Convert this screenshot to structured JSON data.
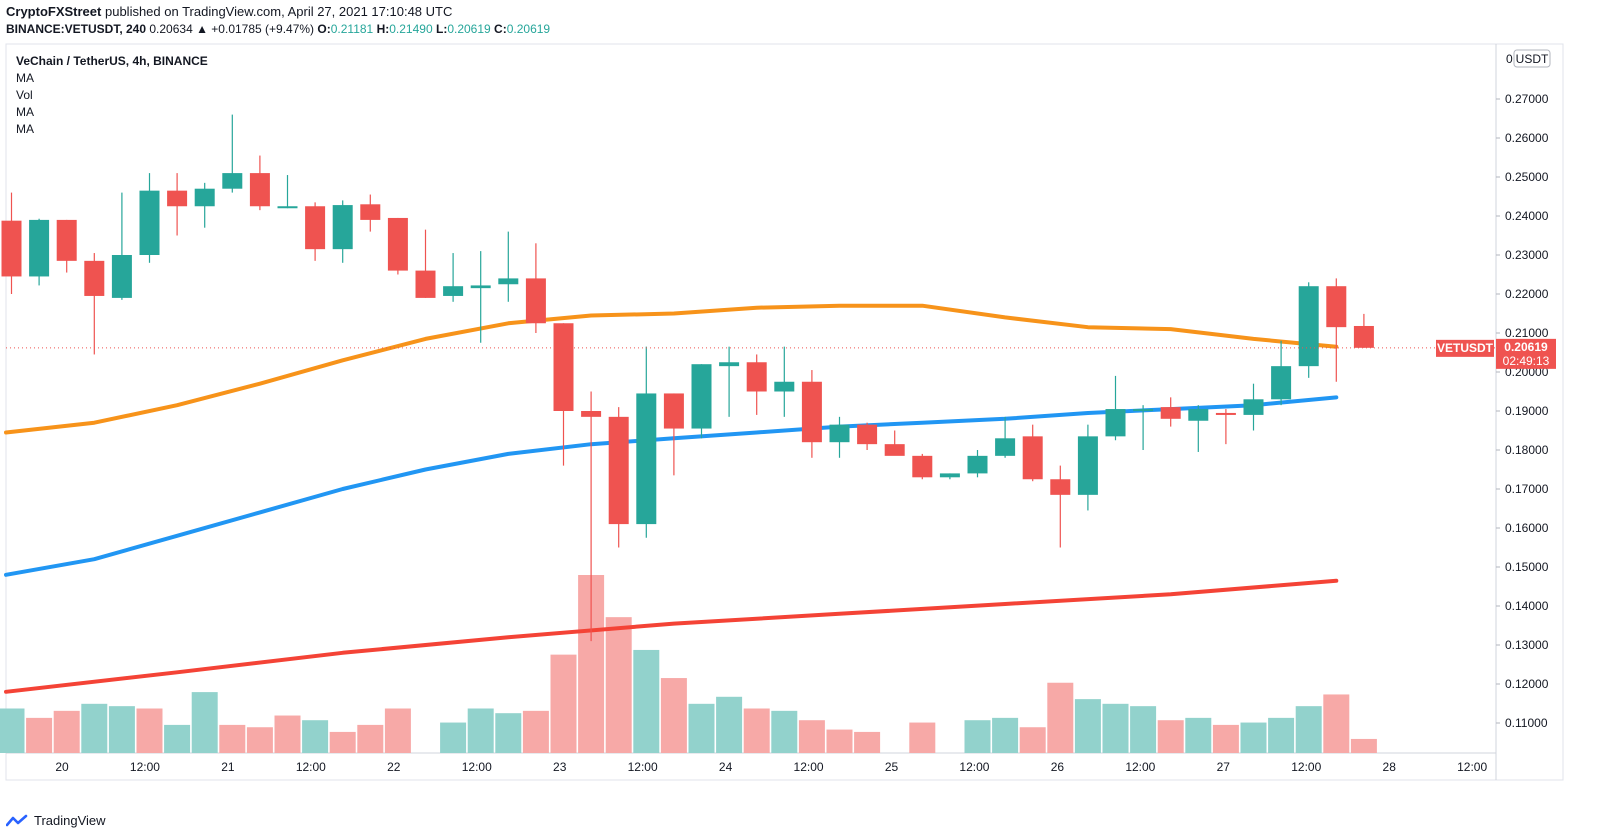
{
  "header": {
    "publisher": "CryptoFXStreet",
    "published_text": "published on TradingView.com, April 27, 2021 17:10:48 UTC",
    "symbol_line": "BINANCE:VETUSDT, 240",
    "change": "0.20634 ▲ +0.01785 (+9.47%)",
    "o_label": "O:",
    "o_value": "0.21181",
    "h_label": "H:",
    "h_value": "0.21490",
    "l_label": "L:",
    "l_value": "0.20619",
    "c_label": "C:",
    "c_value": "0.20619"
  },
  "legend": {
    "symbol": "VeChain / TetherUS, 4h, BINANCE",
    "indicators": [
      "MA",
      "Vol",
      "MA",
      "MA"
    ]
  },
  "footer": {
    "brand": "TradingView"
  },
  "colors": {
    "up": "#26a69a",
    "down": "#ef5350",
    "ma_orange": "#f7931a",
    "ma_blue": "#2196f3",
    "ma_red": "#f44336",
    "price_line": "#ef5350"
  },
  "chart_data": {
    "type": "candlestick",
    "ylim": [
      0.1,
      0.28
    ],
    "y_ticks": [
      "0.27000",
      "0.26000",
      "0.25000",
      "0.24000",
      "0.23000",
      "0.22000",
      "0.21000",
      "0.20000",
      "0.19000",
      "0.18000",
      "0.17000",
      "0.16000",
      "0.15000",
      "0.14000",
      "0.13000",
      "0.12000",
      "0.11000"
    ],
    "y_top_label": "0",
    "currency": "USDT",
    "x_ticks": [
      "20",
      "12:00",
      "21",
      "12:00",
      "22",
      "12:00",
      "23",
      "12:00",
      "24",
      "12:00",
      "25",
      "12:00",
      "26",
      "12:00",
      "27",
      "12:00",
      "28",
      "12:00"
    ],
    "last_price": {
      "symbol": "VETUSDT",
      "value": "0.20619",
      "countdown": "02:49:13"
    },
    "candles": [
      [
        0.2388,
        0.246,
        0.22,
        0.2245
      ],
      [
        0.2245,
        0.2393,
        0.2222,
        0.239
      ],
      [
        0.239,
        0.239,
        0.2255,
        0.2285
      ],
      [
        0.2285,
        0.2305,
        0.2045,
        0.2195
      ],
      [
        0.219,
        0.246,
        0.2185,
        0.23
      ],
      [
        0.23,
        0.251,
        0.228,
        0.2465
      ],
      [
        0.2465,
        0.251,
        0.235,
        0.2425
      ],
      [
        0.2425,
        0.2485,
        0.237,
        0.247
      ],
      [
        0.247,
        0.266,
        0.246,
        0.251
      ],
      [
        0.251,
        0.2555,
        0.2415,
        0.2425
      ],
      [
        0.2425,
        0.2505,
        0.242,
        0.2425
      ],
      [
        0.2425,
        0.2435,
        0.2285,
        0.2315
      ],
      [
        0.2315,
        0.244,
        0.228,
        0.2428
      ],
      [
        0.243,
        0.2455,
        0.236,
        0.239
      ],
      [
        0.2395,
        0.2395,
        0.225,
        0.226
      ],
      [
        0.226,
        0.2365,
        0.219,
        0.219
      ],
      [
        0.2195,
        0.2305,
        0.218,
        0.222
      ],
      [
        0.2215,
        0.231,
        0.2075,
        0.2222
      ],
      [
        0.2225,
        0.236,
        0.218,
        0.224
      ],
      [
        0.224,
        0.233,
        0.21,
        0.2125
      ],
      [
        0.2125,
        0.2125,
        0.176,
        0.19
      ],
      [
        0.19,
        0.195,
        0.131,
        0.1885
      ],
      [
        0.1885,
        0.191,
        0.155,
        0.161
      ],
      [
        0.161,
        0.2065,
        0.1575,
        0.1945
      ],
      [
        0.1945,
        0.1945,
        0.1735,
        0.1855
      ],
      [
        0.1855,
        0.202,
        0.183,
        0.202
      ],
      [
        0.2015,
        0.2065,
        0.1885,
        0.2025
      ],
      [
        0.2025,
        0.2045,
        0.189,
        0.195
      ],
      [
        0.195,
        0.2065,
        0.1885,
        0.1975
      ],
      [
        0.1975,
        0.2005,
        0.178,
        0.182
      ],
      [
        0.182,
        0.1885,
        0.178,
        0.1865
      ],
      [
        0.1865,
        0.187,
        0.18,
        0.1815
      ],
      [
        0.1815,
        0.185,
        0.179,
        0.1785
      ],
      [
        0.1785,
        0.179,
        0.1725,
        0.173
      ],
      [
        0.173,
        0.174,
        0.1725,
        0.174
      ],
      [
        0.174,
        0.18,
        0.173,
        0.1785
      ],
      [
        0.1785,
        0.1885,
        0.178,
        0.183
      ],
      [
        0.1835,
        0.1865,
        0.172,
        0.1725
      ],
      [
        0.1725,
        0.176,
        0.155,
        0.1685
      ],
      [
        0.1685,
        0.1865,
        0.1645,
        0.1835
      ],
      [
        0.1835,
        0.199,
        0.1825,
        0.1905
      ],
      [
        0.19,
        0.1915,
        0.18,
        0.1905
      ],
      [
        0.191,
        0.1935,
        0.186,
        0.188
      ],
      [
        0.1875,
        0.1915,
        0.1795,
        0.1905
      ],
      [
        0.1895,
        0.1905,
        0.1815,
        0.189
      ],
      [
        0.189,
        0.197,
        0.185,
        0.193
      ],
      [
        0.193,
        0.208,
        0.1915,
        0.2015
      ],
      [
        0.2015,
        0.223,
        0.1985,
        0.222
      ],
      [
        0.222,
        0.224,
        0.1975,
        0.2115
      ],
      [
        0.2118,
        0.2149,
        0.2062,
        0.2062
      ]
    ],
    "volume": [
      [
        1.9,
        1
      ],
      [
        1.5,
        0
      ],
      [
        1.8,
        0
      ],
      [
        2.1,
        1
      ],
      [
        2.0,
        1
      ],
      [
        1.9,
        0
      ],
      [
        1.2,
        1
      ],
      [
        2.6,
        1
      ],
      [
        1.2,
        0
      ],
      [
        1.1,
        0
      ],
      [
        1.6,
        0
      ],
      [
        1.4,
        1
      ],
      [
        0.9,
        0
      ],
      [
        1.2,
        0
      ],
      [
        1.9,
        0
      ],
      [
        0.0,
        0
      ],
      [
        1.3,
        1
      ],
      [
        1.9,
        1
      ],
      [
        1.7,
        1
      ],
      [
        1.8,
        0
      ],
      [
        4.2,
        0
      ],
      [
        7.6,
        0
      ],
      [
        5.8,
        0
      ],
      [
        4.4,
        1
      ],
      [
        3.2,
        0
      ],
      [
        2.1,
        1
      ],
      [
        2.4,
        1
      ],
      [
        1.9,
        0
      ],
      [
        1.8,
        1
      ],
      [
        1.4,
        0
      ],
      [
        1.0,
        0
      ],
      [
        0.9,
        0
      ],
      [
        0.0,
        0
      ],
      [
        1.3,
        0
      ],
      [
        0.0,
        1
      ],
      [
        1.4,
        1
      ],
      [
        1.5,
        1
      ],
      [
        1.1,
        0
      ],
      [
        3.0,
        0
      ],
      [
        2.3,
        1
      ],
      [
        2.1,
        1
      ],
      [
        2.0,
        1
      ],
      [
        1.4,
        0
      ],
      [
        1.5,
        1
      ],
      [
        1.2,
        0
      ],
      [
        1.3,
        1
      ],
      [
        1.5,
        1
      ],
      [
        2.0,
        1
      ],
      [
        2.5,
        0
      ],
      [
        0.6,
        0
      ]
    ],
    "ma_orange": [
      [
        0,
        0.1845
      ],
      [
        3,
        0.187
      ],
      [
        6,
        0.1915
      ],
      [
        9,
        0.197
      ],
      [
        12,
        0.203
      ],
      [
        15,
        0.2085
      ],
      [
        18,
        0.2125
      ],
      [
        21,
        0.2145
      ],
      [
        24,
        0.215
      ],
      [
        27,
        0.2165
      ],
      [
        30,
        0.217
      ],
      [
        33,
        0.217
      ],
      [
        36,
        0.214
      ],
      [
        39,
        0.2115
      ],
      [
        42,
        0.211
      ],
      [
        45,
        0.2085
      ],
      [
        48,
        0.2065
      ]
    ],
    "ma_blue": [
      [
        0,
        0.148
      ],
      [
        3,
        0.152
      ],
      [
        6,
        0.158
      ],
      [
        9,
        0.164
      ],
      [
        12,
        0.17
      ],
      [
        15,
        0.175
      ],
      [
        18,
        0.179
      ],
      [
        21,
        0.1815
      ],
      [
        24,
        0.183
      ],
      [
        27,
        0.1845
      ],
      [
        30,
        0.186
      ],
      [
        33,
        0.187
      ],
      [
        36,
        0.188
      ],
      [
        39,
        0.1895
      ],
      [
        42,
        0.1905
      ],
      [
        45,
        0.1915
      ],
      [
        48,
        0.1935
      ]
    ],
    "ma_red": [
      [
        0,
        0.118
      ],
      [
        6,
        0.123
      ],
      [
        12,
        0.128
      ],
      [
        18,
        0.132
      ],
      [
        24,
        0.1355
      ],
      [
        30,
        0.138
      ],
      [
        36,
        0.1405
      ],
      [
        42,
        0.143
      ],
      [
        48,
        0.1465
      ]
    ]
  }
}
